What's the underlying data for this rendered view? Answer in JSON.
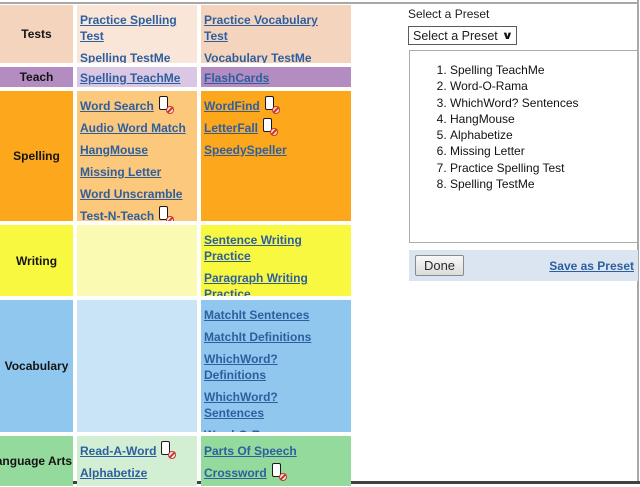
{
  "colors": {
    "link": "#2d5f9f",
    "bar_background": "#dbe5f1",
    "frame_line": "#a8a8a8",
    "bottom_line": "#414141"
  },
  "table": {
    "rows": [
      {
        "label": "Tests",
        "colors": {
          "label": "#f5d4be",
          "mid": "#fae6d8",
          "right": "#f5d4be"
        },
        "mid_links": [
          {
            "label": "Practice Spelling Test",
            "mobile_blocked": false
          },
          {
            "label": "Spelling TestMe",
            "mobile_blocked": false
          }
        ],
        "right_links": [
          {
            "label": "Practice Vocabulary Test",
            "mobile_blocked": false
          },
          {
            "label": "Vocabulary TestMe",
            "mobile_blocked": false
          }
        ]
      },
      {
        "label": "Teach",
        "colors": {
          "label": "#b38cc1",
          "mid": "#d9c7e3",
          "right": "#b38cc1"
        },
        "mid_links": [
          {
            "label": "Spelling TeachMe",
            "mobile_blocked": false
          }
        ],
        "right_links": [
          {
            "label": "FlashCards",
            "mobile_blocked": false
          }
        ]
      },
      {
        "label": "Spelling",
        "colors": {
          "label": "#fda71d",
          "mid": "#fcc87b",
          "right": "#fda71d"
        },
        "mid_links": [
          {
            "label": "Word Search",
            "mobile_blocked": true
          },
          {
            "label": "Audio Word Match",
            "mobile_blocked": false
          },
          {
            "label": "HangMouse",
            "mobile_blocked": false
          },
          {
            "label": "Missing Letter",
            "mobile_blocked": false
          },
          {
            "label": "Word Unscramble",
            "mobile_blocked": false
          },
          {
            "label": "Test-N-Teach",
            "mobile_blocked": true
          }
        ],
        "right_links": [
          {
            "label": "WordFind",
            "mobile_blocked": true
          },
          {
            "label": "LetterFall",
            "mobile_blocked": true
          },
          {
            "label": "SpeedySpeller",
            "mobile_blocked": false
          }
        ]
      },
      {
        "label": "Writing",
        "colors": {
          "label": "#f9f840",
          "mid": "#fbfab2",
          "right": "#f9f840"
        },
        "mid_links": [],
        "right_links": [
          {
            "label": "Sentence Writing Practice",
            "mobile_blocked": false
          },
          {
            "label": "Paragraph Writing Practice",
            "mobile_blocked": false
          }
        ]
      },
      {
        "label": "Vocabulary",
        "colors": {
          "label": "#90c7ef",
          "mid": "#c9e4f7",
          "right": "#90c7ef"
        },
        "mid_links": [],
        "right_links": [
          {
            "label": "MatchIt Sentences",
            "mobile_blocked": false
          },
          {
            "label": "MatchIt Definitions",
            "mobile_blocked": false
          },
          {
            "label": "WhichWord? Definitions",
            "mobile_blocked": false
          },
          {
            "label": "WhichWord? Sentences",
            "mobile_blocked": false
          },
          {
            "label": "Word-O-Rama",
            "mobile_blocked": false
          }
        ]
      },
      {
        "label": "Language Arts",
        "colors": {
          "label": "#94da9c",
          "mid": "#d2eed3",
          "right": "#94da9c"
        },
        "mid_links": [
          {
            "label": "Read-A-Word",
            "mobile_blocked": true
          },
          {
            "label": "Alphabetize",
            "mobile_blocked": false
          }
        ],
        "right_links": [
          {
            "label": "Parts Of Speech",
            "mobile_blocked": false
          },
          {
            "label": "Crossword",
            "mobile_blocked": true
          }
        ]
      }
    ]
  },
  "preset_panel": {
    "label": "Select a Preset",
    "dropdown_value": "Select a Preset",
    "dropdown_chevron": "∨",
    "preset_items": [
      "Spelling TeachMe",
      "Word-O-Rama",
      "WhichWord? Sentences",
      "HangMouse",
      "Alphabetize",
      "Missing Letter",
      "Practice Spelling Test",
      "Spelling TestMe"
    ],
    "done_label": "Done",
    "save_label": "Save as Preset"
  }
}
